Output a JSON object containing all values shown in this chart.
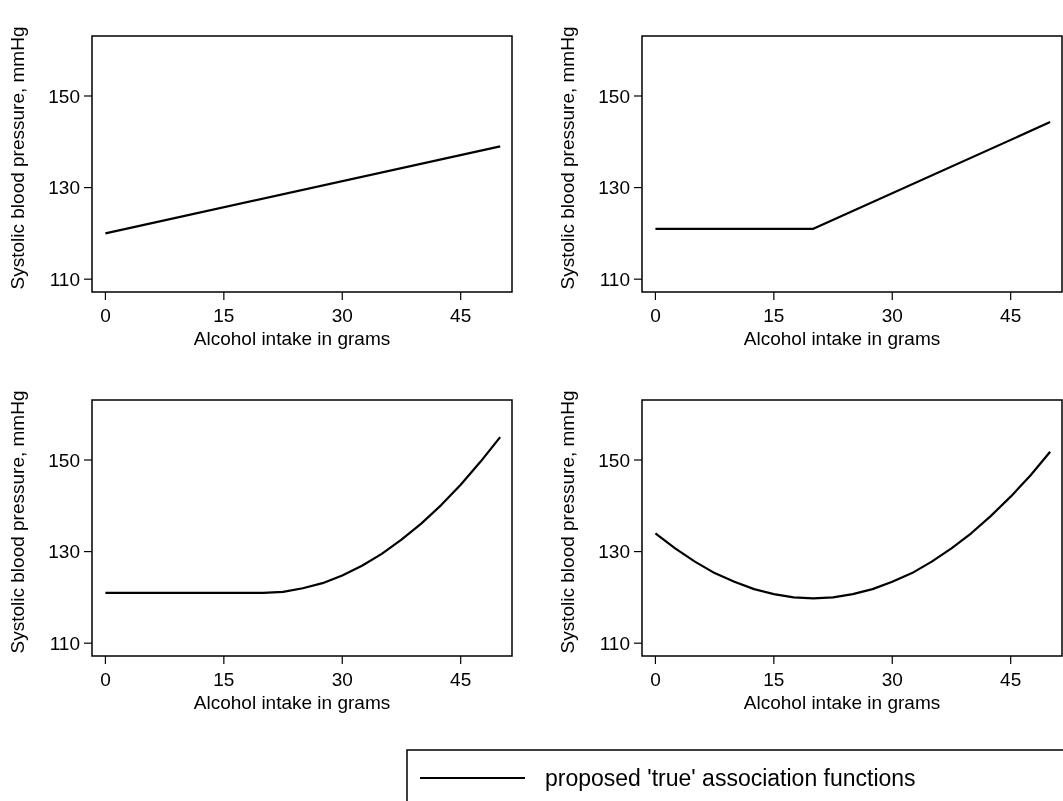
{
  "chart_data": [
    {
      "type": "line",
      "xlabel": "Alcohol intake in grams",
      "ylabel": "Systolic blood pressure, mmHg",
      "xlim": [
        -1.7,
        51.5
      ],
      "ylim": [
        107.2,
        163.1
      ],
      "xticks": [
        0,
        15,
        30,
        45
      ],
      "yticks": [
        110,
        130,
        150
      ],
      "line_style": "solid",
      "marker": "none",
      "series": [
        {
          "color": "#000000",
          "x": [
            0,
            50
          ],
          "values": [
            120,
            139
          ]
        }
      ]
    },
    {
      "type": "line",
      "xlabel": "Alcohol intake in grams",
      "ylabel": "Systolic blood pressure, mmHg",
      "xlim": [
        -1.7,
        51.5
      ],
      "ylim": [
        107.2,
        163.1
      ],
      "xticks": [
        0,
        15,
        30,
        45
      ],
      "yticks": [
        110,
        130,
        150
      ],
      "line_style": "solid",
      "marker": "none",
      "series": [
        {
          "color": "#000000",
          "x": [
            0,
            20,
            50
          ],
          "values": [
            121,
            121,
            144.3
          ]
        }
      ]
    },
    {
      "type": "line",
      "xlabel": "Alcohol intake in grams",
      "ylabel": "Systolic blood pressure, mmHg",
      "xlim": [
        -1.7,
        51.5
      ],
      "ylim": [
        107.2,
        163.1
      ],
      "xticks": [
        0,
        15,
        30,
        45
      ],
      "yticks": [
        110,
        130,
        150
      ],
      "line_style": "solid",
      "marker": "none",
      "series": [
        {
          "color": "#000000",
          "x": [
            0,
            20,
            22.5,
            25,
            27.5,
            30,
            32.5,
            35,
            37.5,
            40,
            42.5,
            45,
            47.5,
            50
          ],
          "values": [
            121,
            121,
            121.2,
            122,
            123.1,
            124.8,
            126.9,
            129.5,
            132.6,
            136.1,
            140.1,
            144.6,
            149.6,
            155
          ]
        }
      ]
    },
    {
      "type": "line",
      "xlabel": "Alcohol intake in grams",
      "ylabel": "Systolic blood pressure, mmHg",
      "xlim": [
        -1.7,
        51.5
      ],
      "ylim": [
        107.2,
        163.1
      ],
      "xticks": [
        0,
        15,
        30,
        45
      ],
      "yticks": [
        110,
        130,
        150
      ],
      "line_style": "solid",
      "marker": "none",
      "legend": "bottom",
      "series": [
        {
          "name": "proposed 'true' association functions",
          "color": "#000000",
          "x": [
            0,
            2.5,
            5,
            7.5,
            10,
            12.5,
            15,
            17.5,
            20,
            22.5,
            25,
            27.5,
            30,
            32.5,
            35,
            37.5,
            40,
            42.5,
            45,
            47.5,
            50
          ],
          "values": [
            134,
            130.7,
            127.8,
            125.3,
            123.4,
            121.8,
            120.7,
            120,
            119.8,
            120,
            120.7,
            121.8,
            123.4,
            125.3,
            127.8,
            130.7,
            134,
            137.8,
            142,
            146.6,
            151.8
          ]
        }
      ]
    }
  ]
}
